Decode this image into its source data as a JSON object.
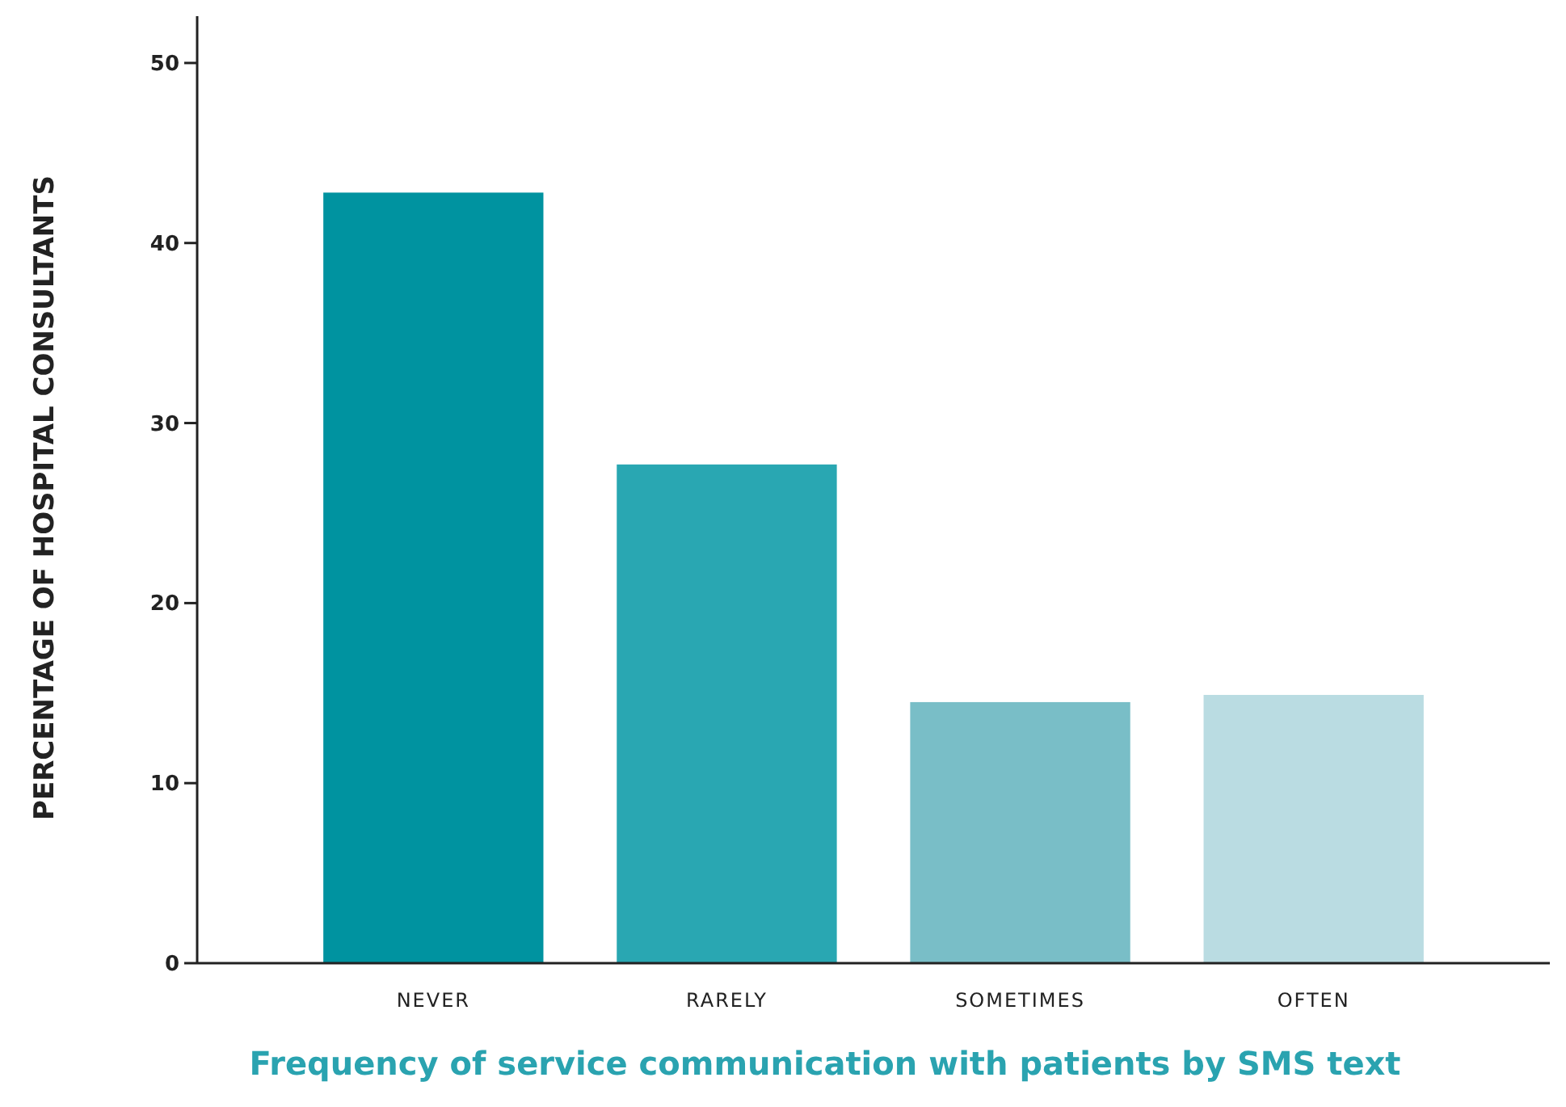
{
  "chart_data": {
    "type": "bar",
    "xlabel": "Frequency of service communication with patients by SMS text",
    "ylabel": "PERCENTAGE OF HOSPITAL CONSULTANTS",
    "categories": [
      "NEVER",
      "RARELY",
      "SOMETIMES",
      "OFTEN"
    ],
    "values": [
      42.8,
      27.7,
      14.5,
      14.9
    ],
    "colors": [
      "#0093a0",
      "#29a7b2",
      "#79bec7",
      "#badce2"
    ],
    "ylim": [
      0,
      52.6
    ],
    "yticks": [
      0,
      10,
      20,
      30,
      40,
      50
    ],
    "grid": false
  }
}
